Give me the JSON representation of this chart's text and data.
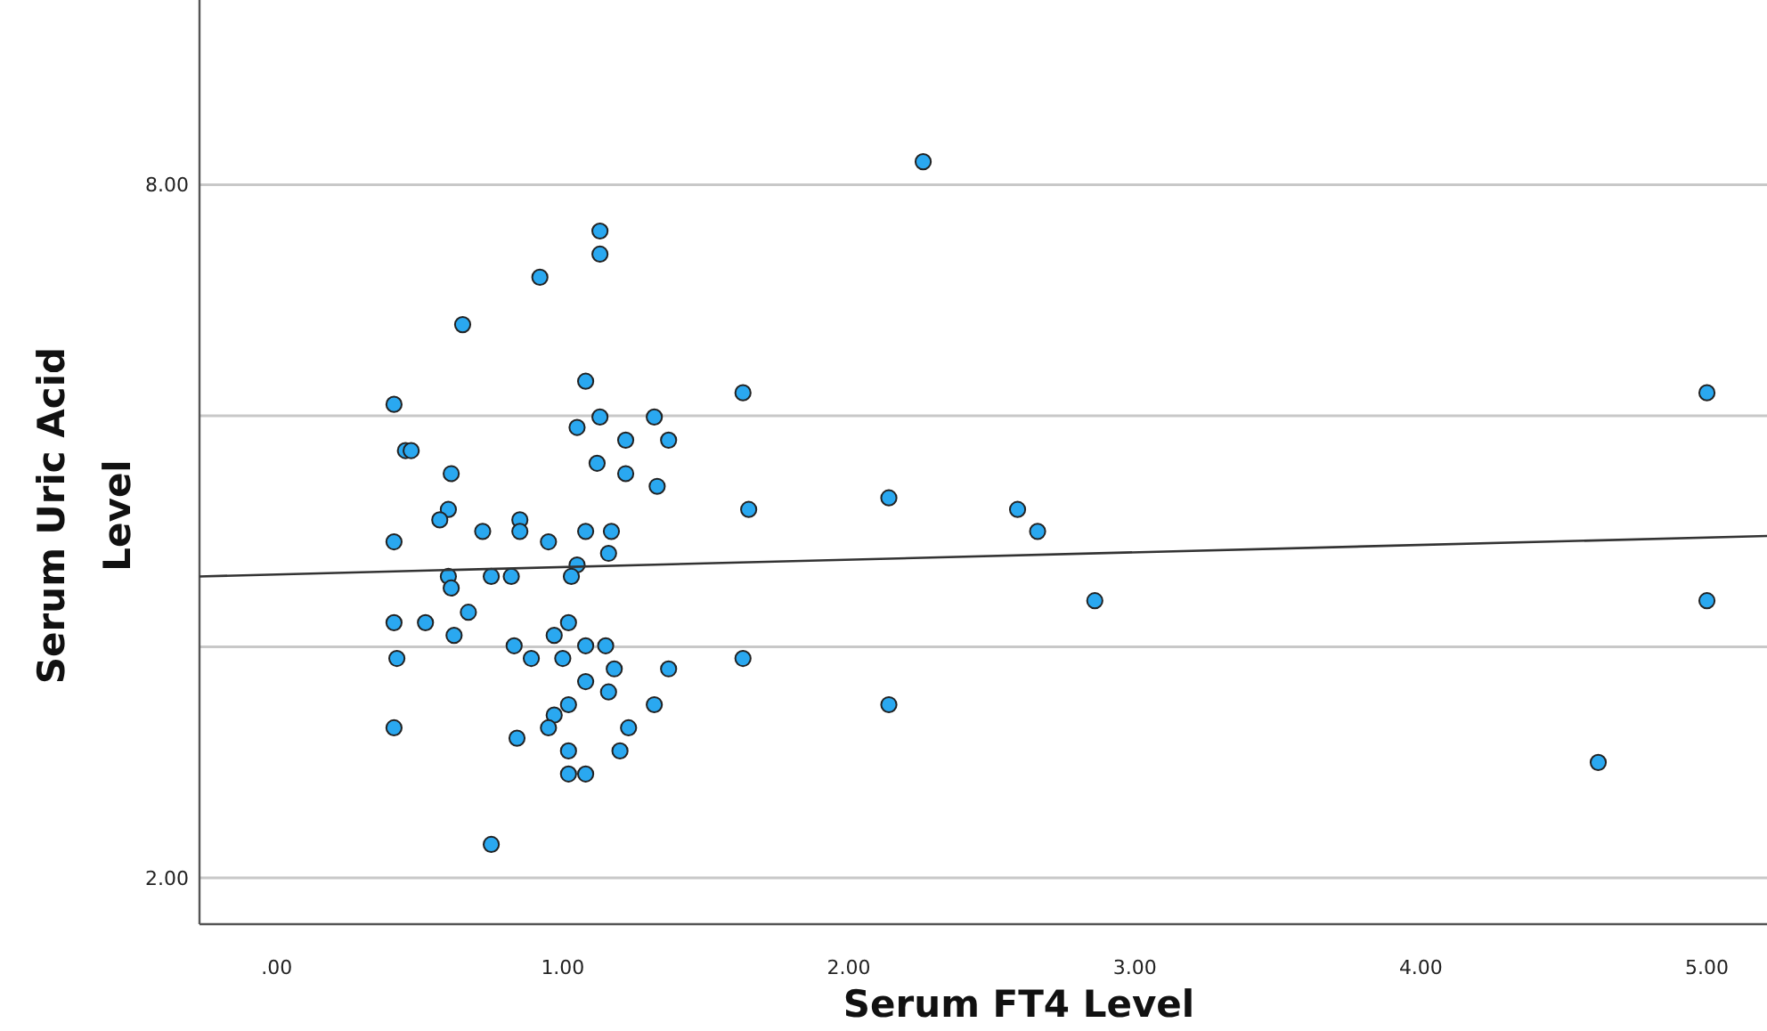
{
  "chart_data": {
    "type": "scatter",
    "xlabel": "Serum FT4 Level",
    "ylabel": "Serum Uric Acid Level",
    "xlim": [
      -0.27,
      5.21
    ],
    "ylim": [
      1.6,
      9.6
    ],
    "xticks": [
      {
        "value": 0,
        "label": ".00"
      },
      {
        "value": 1,
        "label": "1.00"
      },
      {
        "value": 2,
        "label": "2.00"
      },
      {
        "value": 3,
        "label": "3.00"
      },
      {
        "value": 4,
        "label": "4.00"
      },
      {
        "value": 5,
        "label": "5.00"
      }
    ],
    "yticks": [
      {
        "value": 2,
        "label": "2.00"
      },
      {
        "value": 4,
        "label": null
      },
      {
        "value": 6,
        "label": null
      },
      {
        "value": 8,
        "label": "8.00"
      }
    ],
    "grid": "y",
    "series": [
      {
        "color": "#2aa8f0",
        "marker": "circle",
        "x": [
          0.41,
          0.45,
          0.47,
          0.61,
          0.65,
          0.92,
          1.13,
          1.13,
          2.26,
          1.08,
          1.13,
          1.05,
          1.32,
          1.22,
          1.37,
          1.12,
          1.22,
          1.33,
          1.63,
          5.0,
          2.14,
          2.59,
          2.66,
          2.86,
          5.0,
          1.65,
          0.6,
          0.57,
          0.41,
          0.72,
          0.85,
          0.85,
          0.95,
          1.08,
          1.17,
          1.16,
          1.05,
          0.6,
          0.61,
          0.75,
          0.82,
          1.03,
          0.67,
          0.41,
          0.52,
          0.62,
          1.02,
          0.97,
          0.83,
          1.08,
          1.15,
          0.42,
          0.89,
          1.0,
          1.18,
          1.37,
          1.08,
          1.16,
          1.02,
          1.32,
          0.97,
          0.95,
          1.23,
          0.41,
          0.84,
          1.02,
          1.2,
          1.02,
          1.08,
          0.75,
          1.63,
          2.14,
          4.62
        ],
        "values": [
          6.1,
          5.7,
          5.7,
          5.5,
          6.79,
          7.2,
          7.6,
          7.4,
          8.2,
          6.3,
          5.99,
          5.9,
          5.99,
          5.79,
          5.79,
          5.59,
          5.5,
          5.39,
          6.2,
          6.2,
          5.29,
          5.19,
          5.0,
          4.4,
          4.4,
          5.19,
          5.19,
          5.1,
          4.91,
          5.0,
          5.1,
          5.0,
          4.91,
          5.0,
          5.0,
          4.81,
          4.71,
          4.61,
          4.51,
          4.61,
          4.61,
          4.61,
          4.3,
          4.21,
          4.21,
          4.1,
          4.21,
          4.1,
          4.01,
          4.01,
          4.01,
          3.9,
          3.9,
          3.9,
          3.81,
          3.81,
          3.7,
          3.61,
          3.5,
          3.5,
          3.41,
          3.3,
          3.3,
          3.3,
          3.21,
          3.1,
          3.1,
          2.9,
          2.9,
          2.29,
          3.9,
          3.5,
          3.0
        ]
      },
      {
        "type": "line",
        "color": "#333333",
        "marker": "none",
        "x": [
          -0.27,
          5.21
        ],
        "values": [
          4.61,
          4.96
        ]
      }
    ]
  }
}
